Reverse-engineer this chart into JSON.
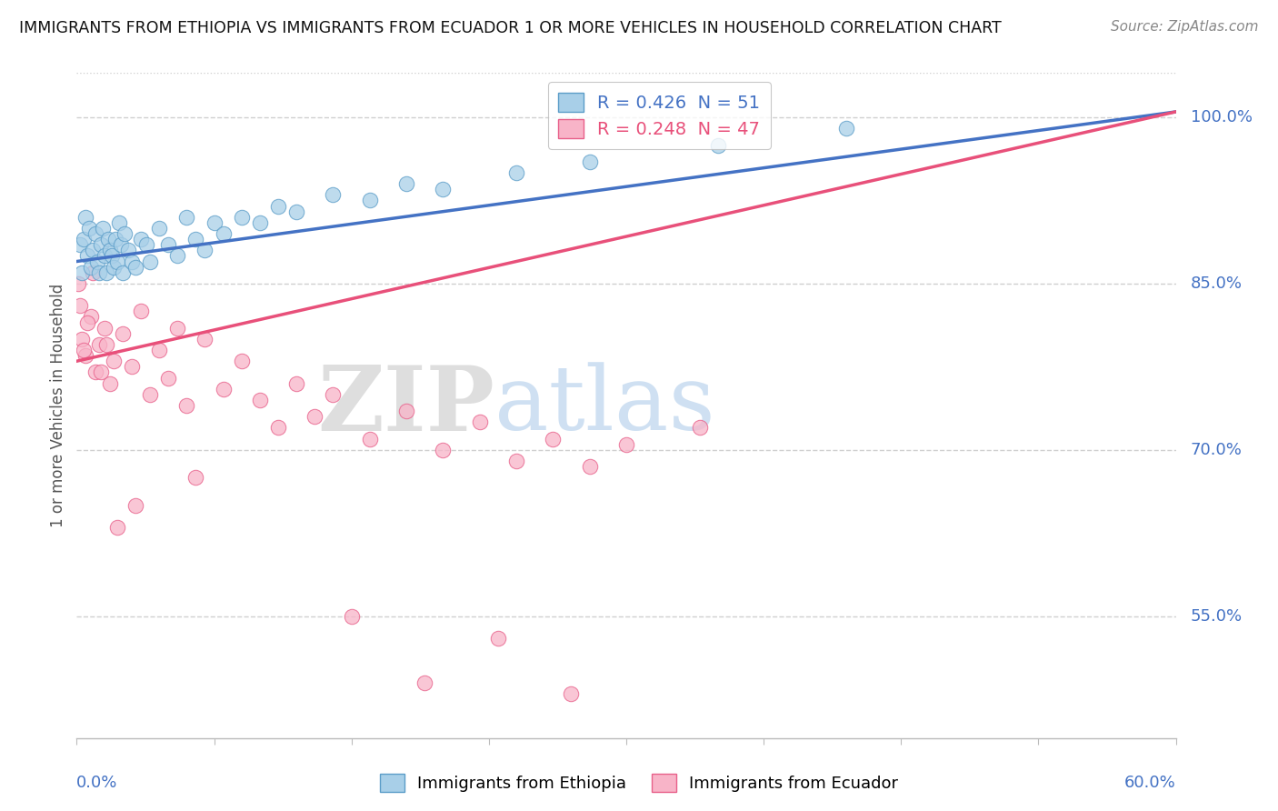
{
  "title": "IMMIGRANTS FROM ETHIOPIA VS IMMIGRANTS FROM ECUADOR 1 OR MORE VEHICLES IN HOUSEHOLD CORRELATION CHART",
  "source": "Source: ZipAtlas.com",
  "ylabel": "1 or more Vehicles in Household",
  "xlim": [
    0,
    60
  ],
  "ylim": [
    44,
    104
  ],
  "ytick_vals": [
    55.0,
    70.0,
    85.0,
    100.0
  ],
  "ytick_labels": [
    "55.0%",
    "70.0%",
    "85.0%",
    "100.0%"
  ],
  "eth_color": "#a8cfe8",
  "eth_edge": "#5b9dc8",
  "ecu_color": "#f8b4c8",
  "ecu_edge": "#e8608a",
  "line_eth_color": "#4472c4",
  "line_ecu_color": "#e8507a",
  "eth_R": 0.426,
  "eth_N": 51,
  "ecu_R": 0.248,
  "ecu_N": 47,
  "eth_x": [
    0.2,
    0.3,
    0.4,
    0.5,
    0.6,
    0.7,
    0.8,
    0.9,
    1.0,
    1.1,
    1.2,
    1.3,
    1.4,
    1.5,
    1.6,
    1.7,
    1.8,
    1.9,
    2.0,
    2.1,
    2.2,
    2.3,
    2.4,
    2.5,
    2.6,
    2.8,
    3.0,
    3.2,
    3.5,
    3.8,
    4.0,
    4.5,
    5.0,
    5.5,
    6.0,
    6.5,
    7.0,
    7.5,
    8.0,
    9.0,
    10.0,
    11.0,
    12.0,
    14.0,
    16.0,
    18.0,
    20.0,
    24.0,
    28.0,
    35.0,
    42.0
  ],
  "eth_y": [
    88.5,
    86.0,
    89.0,
    91.0,
    87.5,
    90.0,
    86.5,
    88.0,
    89.5,
    87.0,
    86.0,
    88.5,
    90.0,
    87.5,
    86.0,
    89.0,
    88.0,
    87.5,
    86.5,
    89.0,
    87.0,
    90.5,
    88.5,
    86.0,
    89.5,
    88.0,
    87.0,
    86.5,
    89.0,
    88.5,
    87.0,
    90.0,
    88.5,
    87.5,
    91.0,
    89.0,
    88.0,
    90.5,
    89.5,
    91.0,
    90.5,
    92.0,
    91.5,
    93.0,
    92.5,
    94.0,
    93.5,
    95.0,
    96.0,
    97.5,
    99.0
  ],
  "ecu_x": [
    0.3,
    0.5,
    0.8,
    1.0,
    1.2,
    1.5,
    1.8,
    2.0,
    2.5,
    3.0,
    3.5,
    4.0,
    4.5,
    5.0,
    5.5,
    6.0,
    7.0,
    8.0,
    9.0,
    10.0,
    11.0,
    12.0,
    13.0,
    14.0,
    16.0,
    18.0,
    20.0,
    22.0,
    24.0,
    26.0,
    28.0,
    30.0,
    34.0,
    0.1,
    0.2,
    0.4,
    0.6,
    0.9,
    1.3,
    1.6,
    2.2,
    3.2,
    6.5,
    15.0,
    19.0,
    23.0,
    27.0
  ],
  "ecu_y": [
    80.0,
    78.5,
    82.0,
    77.0,
    79.5,
    81.0,
    76.0,
    78.0,
    80.5,
    77.5,
    82.5,
    75.0,
    79.0,
    76.5,
    81.0,
    74.0,
    80.0,
    75.5,
    78.0,
    74.5,
    72.0,
    76.0,
    73.0,
    75.0,
    71.0,
    73.5,
    70.0,
    72.5,
    69.0,
    71.0,
    68.5,
    70.5,
    72.0,
    85.0,
    83.0,
    79.0,
    81.5,
    86.0,
    77.0,
    79.5,
    63.0,
    65.0,
    67.5,
    55.0,
    49.0,
    53.0,
    48.0
  ],
  "watermark_zip_color": "#c8dff0",
  "watermark_atlas_color": "#a8c8e8",
  "axis_label_color": "#4472c4",
  "ytick_color": "#4472c4",
  "grid_color": "#d0d0d0",
  "title_color": "#111111",
  "source_color": "#888888"
}
